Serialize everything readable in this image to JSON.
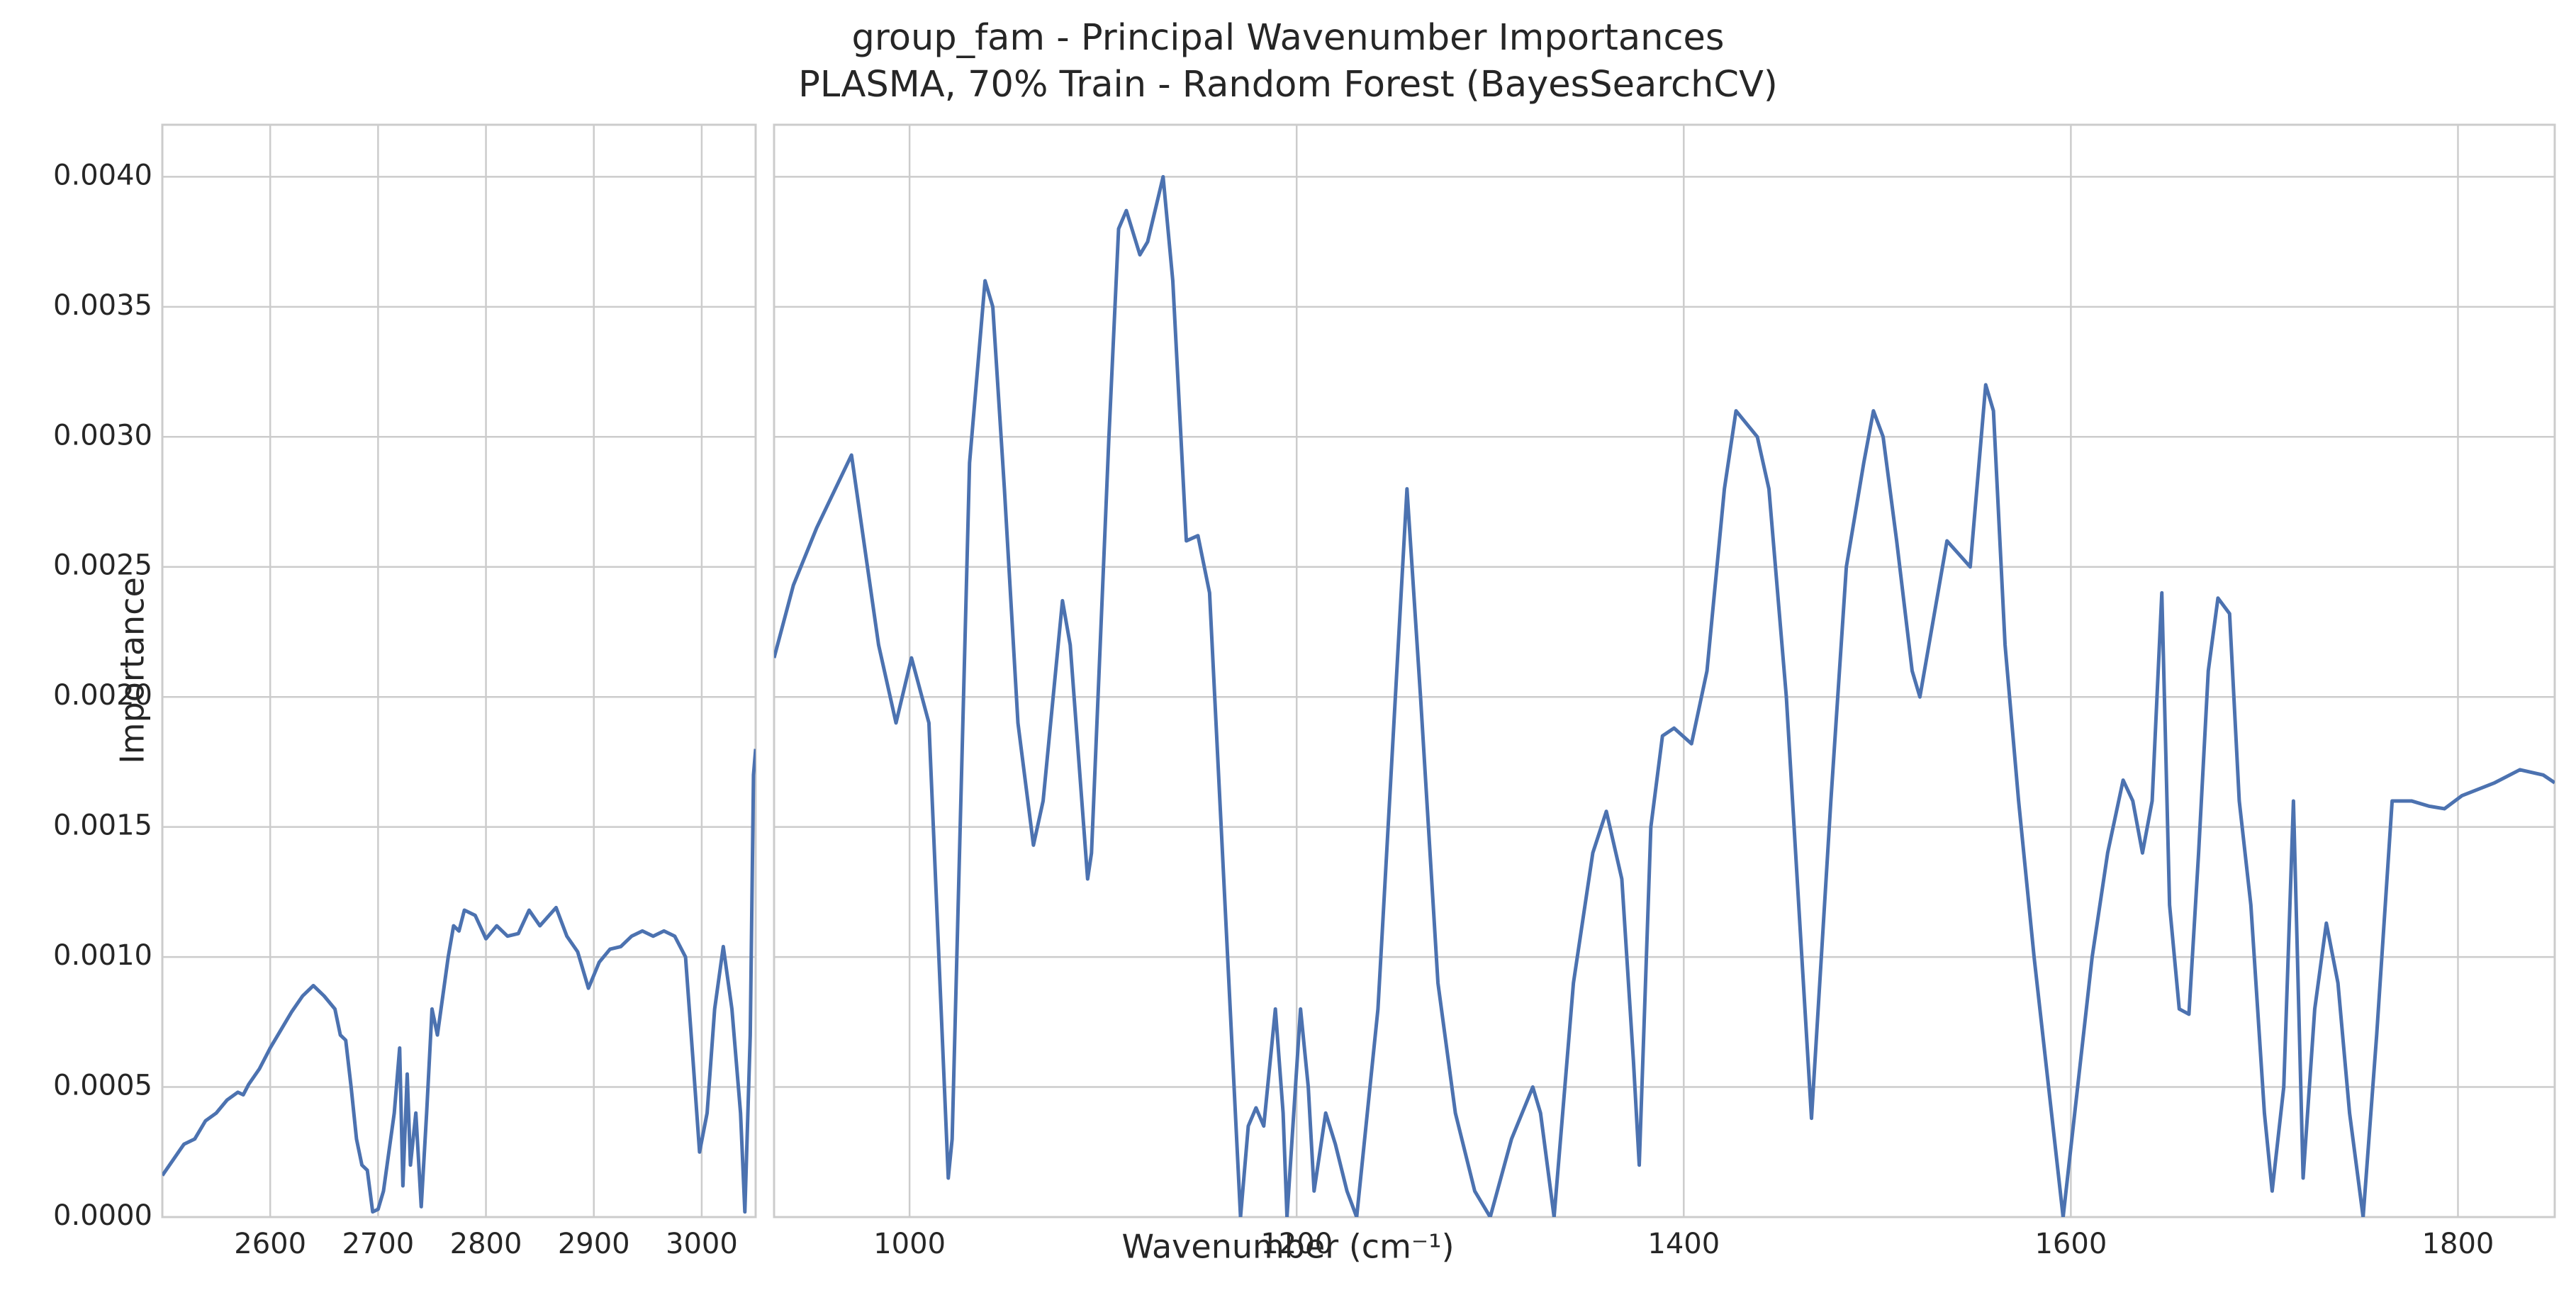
{
  "chart_data": [
    {
      "type": "line",
      "title": "group_fam - Principal Wavenumber Importances",
      "subtitle": "PLASMA, 70% Train - Random Forest (BayesSearchCV)",
      "ylabel": "Importance",
      "xlabel": "Wavenumber (cm⁻¹)",
      "grid": true,
      "color": "#4c72b0",
      "xlim": [
        2500,
        3050
      ],
      "xticks": [
        2600,
        2700,
        2800,
        2900,
        3000
      ],
      "ylim": [
        0,
        0.0042
      ],
      "yticks": [
        {
          "value": 0,
          "label": "0.0000"
        },
        {
          "value": 0.0005,
          "label": "0.0005"
        },
        {
          "value": 0.001,
          "label": "0.0010"
        },
        {
          "value": 0.0015,
          "label": "0.0015"
        },
        {
          "value": 0.002,
          "label": "0.0020"
        },
        {
          "value": 0.0025,
          "label": "0.0025"
        },
        {
          "value": 0.003,
          "label": "0.0030"
        },
        {
          "value": 0.0035,
          "label": "0.0035"
        },
        {
          "value": 0.004,
          "label": "0.0040"
        }
      ],
      "x": [
        2500,
        2510,
        2520,
        2530,
        2540,
        2550,
        2560,
        2570,
        2575,
        2580,
        2590,
        2600,
        2610,
        2620,
        2630,
        2640,
        2650,
        2660,
        2665,
        2670,
        2675,
        2680,
        2685,
        2690,
        2695,
        2700,
        2705,
        2710,
        2715,
        2720,
        2723,
        2727,
        2730,
        2735,
        2740,
        2745,
        2750,
        2755,
        2760,
        2765,
        2770,
        2775,
        2780,
        2790,
        2800,
        2810,
        2820,
        2830,
        2840,
        2850,
        2865,
        2875,
        2885,
        2895,
        2905,
        2915,
        2925,
        2935,
        2945,
        2955,
        2965,
        2975,
        2985,
        2992,
        2998,
        3005,
        3012,
        3020,
        3028,
        3036,
        3040,
        3045,
        3048,
        3050
      ],
      "values": [
        0.00016,
        0.00022,
        0.00028,
        0.0003,
        0.00037,
        0.0004,
        0.00045,
        0.00048,
        0.00047,
        0.00051,
        0.00057,
        0.00065,
        0.00072,
        0.00079,
        0.00085,
        0.00089,
        0.00085,
        0.0008,
        0.0007,
        0.00068,
        0.0005,
        0.0003,
        0.0002,
        0.00018,
        2e-05,
        3e-05,
        0.0001,
        0.00025,
        0.0004,
        0.00065,
        0.00012,
        0.00055,
        0.0002,
        0.0004,
        4e-05,
        0.0004,
        0.0008,
        0.0007,
        0.00085,
        0.001,
        0.00112,
        0.0011,
        0.00118,
        0.00116,
        0.00107,
        0.00112,
        0.00108,
        0.00109,
        0.00118,
        0.00112,
        0.00119,
        0.00108,
        0.00102,
        0.00088,
        0.00098,
        0.00103,
        0.00104,
        0.00108,
        0.0011,
        0.00108,
        0.0011,
        0.00108,
        0.001,
        0.0006,
        0.00025,
        0.0004,
        0.0008,
        0.00104,
        0.0008,
        0.0004,
        2e-05,
        0.0007,
        0.0017,
        0.0018
      ]
    },
    {
      "type": "line",
      "grid": true,
      "color": "#4c72b0",
      "xlim": [
        930,
        1850
      ],
      "xticks": [
        1000,
        1200,
        1400,
        1600,
        1800
      ],
      "ylim": [
        0,
        0.0042
      ],
      "yticks": [
        0,
        0.0005,
        0.001,
        0.0015,
        0.002,
        0.0025,
        0.003,
        0.0035,
        0.004
      ],
      "x": [
        930,
        940,
        952,
        970,
        984,
        993,
        1001,
        1010,
        1018,
        1020,
        1022,
        1031,
        1039,
        1043,
        1049,
        1056,
        1064,
        1069,
        1079,
        1083,
        1092,
        1094,
        1103,
        1108,
        1112,
        1119,
        1123,
        1131,
        1136,
        1143,
        1149,
        1155,
        1163,
        1171,
        1175,
        1179,
        1183,
        1189,
        1193,
        1195,
        1202,
        1206,
        1209,
        1215,
        1220,
        1226,
        1231,
        1242,
        1251,
        1257,
        1264,
        1273,
        1282,
        1292,
        1296,
        1300,
        1311,
        1322,
        1326,
        1333,
        1343,
        1353,
        1360,
        1368,
        1374,
        1377,
        1383,
        1389,
        1395,
        1404,
        1412,
        1421,
        1427,
        1438,
        1444,
        1453,
        1461,
        1466,
        1476,
        1484,
        1493,
        1498,
        1503,
        1510,
        1518,
        1522,
        1529,
        1536,
        1542,
        1548,
        1556,
        1560,
        1566,
        1573,
        1581,
        1590,
        1596,
        1602,
        1611,
        1619,
        1627,
        1632,
        1637,
        1642,
        1647,
        1651,
        1656,
        1661,
        1666,
        1671,
        1676,
        1682,
        1687,
        1693,
        1700,
        1704,
        1710,
        1715,
        1720,
        1726,
        1732,
        1738,
        1744,
        1751,
        1758,
        1766,
        1776,
        1785,
        1793,
        1802,
        1819,
        1832,
        1844,
        1850
      ],
      "values": [
        0.00215,
        0.00243,
        0.00265,
        0.00293,
        0.0022,
        0.0019,
        0.00215,
        0.0019,
        0.0005,
        0.00015,
        0.0003,
        0.0029,
        0.0036,
        0.0035,
        0.0028,
        0.0019,
        0.00143,
        0.0016,
        0.00237,
        0.0022,
        0.0013,
        0.0014,
        0.003,
        0.0038,
        0.00387,
        0.0037,
        0.00375,
        0.004,
        0.0036,
        0.0026,
        0.00262,
        0.0024,
        0.0012,
        0.0,
        0.00035,
        0.00042,
        0.00035,
        0.0008,
        0.0004,
        0.0,
        0.0008,
        0.0005,
        0.0001,
        0.0004,
        0.00028,
        0.0001,
        0.0,
        0.0008,
        0.002,
        0.0028,
        0.002,
        0.0009,
        0.0004,
        0.0001,
        5e-05,
        0.0,
        0.0003,
        0.0005,
        0.0004,
        0.0,
        0.0009,
        0.0014,
        0.00156,
        0.0013,
        0.0006,
        0.0002,
        0.0015,
        0.00185,
        0.00188,
        0.00182,
        0.0021,
        0.0028,
        0.0031,
        0.003,
        0.0028,
        0.002,
        0.001,
        0.00038,
        0.0016,
        0.0025,
        0.0029,
        0.0031,
        0.003,
        0.0026,
        0.0021,
        0.002,
        0.0023,
        0.0026,
        0.00255,
        0.0025,
        0.0032,
        0.0031,
        0.0022,
        0.0016,
        0.001,
        0.0004,
        0.0,
        0.0004,
        0.001,
        0.0014,
        0.00168,
        0.0016,
        0.0014,
        0.0016,
        0.0024,
        0.0012,
        0.0008,
        0.00078,
        0.0014,
        0.0021,
        0.00238,
        0.00232,
        0.0016,
        0.0012,
        0.0004,
        0.0001,
        0.0005,
        0.0016,
        0.00015,
        0.0008,
        0.00113,
        0.0009,
        0.0004,
        0.0,
        0.0007,
        0.0016,
        0.0016,
        0.00158,
        0.00157,
        0.00162,
        0.00167,
        0.00172,
        0.0017,
        0.00167
      ]
    }
  ]
}
